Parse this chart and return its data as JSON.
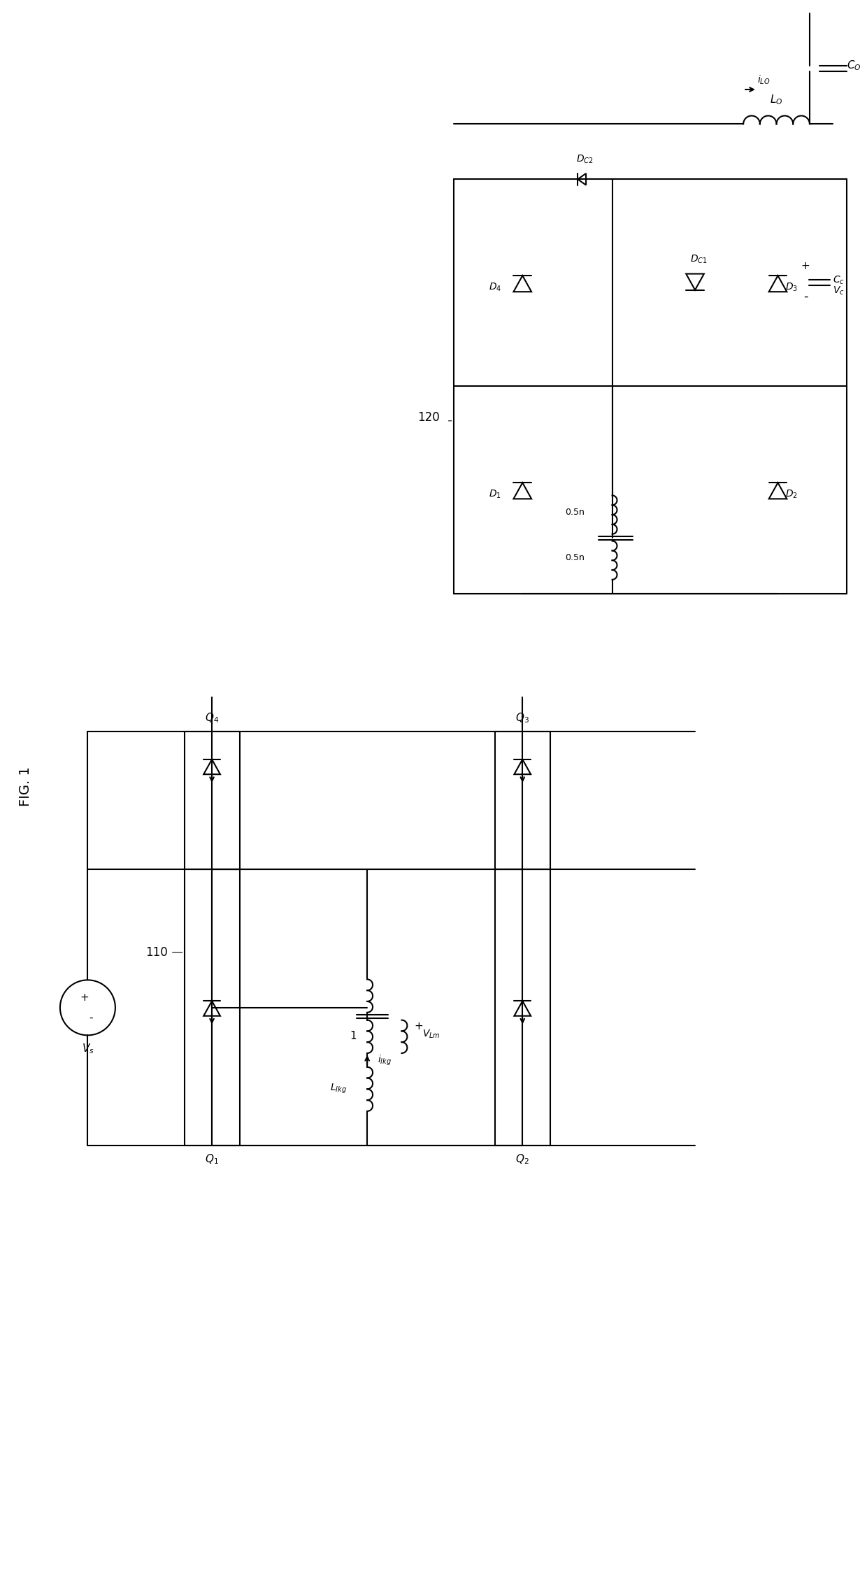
{
  "fig_title": "FIG. 1",
  "label_110": "110",
  "label_120": "120",
  "background": "#ffffff",
  "line_color": "#000000",
  "line_width": 1.5,
  "font_size": 11
}
